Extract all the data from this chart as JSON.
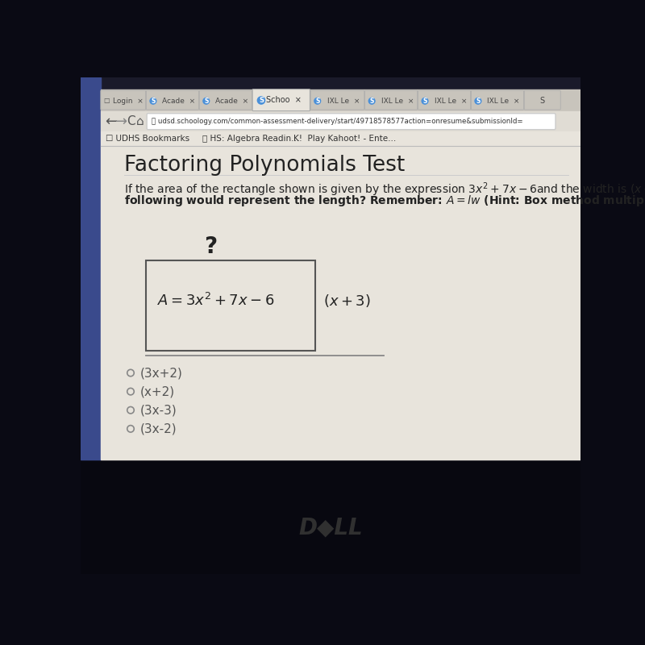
{
  "title": "Factoring Polynomials Test",
  "choices": [
    "(3x+2)",
    "(x+2)",
    "(3x-3)",
    "(3x-2)"
  ],
  "tab_labels": [
    "Login",
    "Acade",
    "Acade",
    "Schoo",
    "IXL Le",
    "IXL Le",
    "IXL Le",
    "IXL Le",
    "S"
  ],
  "url_text": "udsd.schoology.com/common-assessment-delivery/start/49718578577action=onresume&submissionId=",
  "bookmark1": "UDHS Bookmarks",
  "bookmark2": "HS: Algebra Readin...",
  "bookmark3": "Play Kahoot! - Ente...",
  "bg_dark": "#0a0a14",
  "bg_content": "#e8e4dc",
  "bg_tab_bar": "#c8c4bc",
  "bg_nav_bar": "#e0dcd4",
  "bg_bookmark": "#e8e4dc",
  "bg_left_bar": "#3a4a8c",
  "active_tab_color": "#e8e4dc",
  "inactive_tab_color": "#c8c4bc",
  "active_tab_text": "#333333",
  "tab_active_index": 3,
  "rect_bg": "#e8e4dc",
  "rect_edge": "#555555",
  "text_dark": "#222222",
  "text_gray": "#666666",
  "text_choice": "#555555",
  "title_fontsize": 19,
  "question_fontsize": 10,
  "label_fontsize": 13,
  "choice_fontsize": 11
}
